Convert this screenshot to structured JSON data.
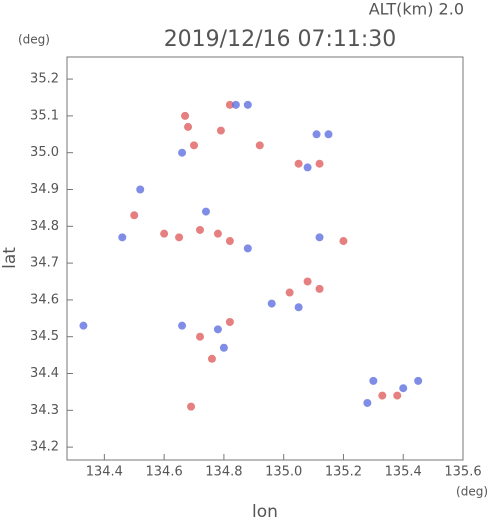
{
  "chart_data": {
    "type": "scatter",
    "title": "2019/12/16 07:11:30",
    "subtitle": "ALT(km) 2.0",
    "x_label": "lon",
    "y_label": "lat",
    "x_unit": "(deg)",
    "y_unit": "(deg)",
    "xlim": [
      134.275,
      135.6
    ],
    "ylim": [
      34.165,
      35.26
    ],
    "xticks": [
      134.4,
      134.6,
      134.8,
      {
        "value": 135,
        "label": "135.0"
      },
      135.2,
      135.4,
      135.6
    ],
    "yticks": [
      34.2,
      34.3,
      34.4,
      34.5,
      34.6,
      34.7,
      34.8,
      34.9,
      {
        "value": 35,
        "label": "35.0"
      },
      35.1,
      35.2
    ],
    "x": [
      134.67,
      134.68,
      134.82,
      134.84,
      134.88,
      134.79,
      135.11,
      135.15,
      134.92,
      135.05,
      135.08,
      135.12,
      134.66,
      134.7,
      134.52,
      134.5,
      134.6,
      134.65,
      134.72,
      134.78,
      134.82,
      134.74,
      134.88,
      135.12,
      135.2,
      134.46,
      135.02,
      135.08,
      135.12,
      134.96,
      135.05,
      134.82,
      134.78,
      134.72,
      134.8,
      134.66,
      134.33,
      134.76,
      134.69,
      135.3,
      135.33,
      135.38,
      135.28,
      135.4,
      135.45
    ],
    "y": [
      35.1,
      35.07,
      35.13,
      35.13,
      35.13,
      35.06,
      35.05,
      35.05,
      35.02,
      34.97,
      34.96,
      34.97,
      35.0,
      35.02,
      34.9,
      34.83,
      34.78,
      34.77,
      34.79,
      34.78,
      34.76,
      34.84,
      34.74,
      34.77,
      34.76,
      34.77,
      34.62,
      34.65,
      34.63,
      34.59,
      34.58,
      34.54,
      34.52,
      34.5,
      34.47,
      34.53,
      34.53,
      34.44,
      34.31,
      34.38,
      34.34,
      34.34,
      34.32,
      34.36,
      34.38
    ],
    "colors": [
      "#e06060",
      "#e06060",
      "#e06060",
      "#6070e0",
      "#6070e0",
      "#e06060",
      "#6070e0",
      "#6070e0",
      "#e06060",
      "#e06060",
      "#6070e0",
      "#e06060",
      "#6070e0",
      "#e06060",
      "#6070e0",
      "#e06060",
      "#e06060",
      "#e06060",
      "#e06060",
      "#e06060",
      "#e06060",
      "#6070e0",
      "#6070e0",
      "#6070e0",
      "#e06060",
      "#6070e0",
      "#e06060",
      "#e06060",
      "#e06060",
      "#6070e0",
      "#6070e0",
      "#e06060",
      "#6070e0",
      "#e06060",
      "#6070e0",
      "#6070e0",
      "#6070e0",
      "#e06060",
      "#e06060",
      "#6070e0",
      "#e06060",
      "#e06060",
      "#6070e0",
      "#6070e0",
      "#6070e0"
    ]
  }
}
